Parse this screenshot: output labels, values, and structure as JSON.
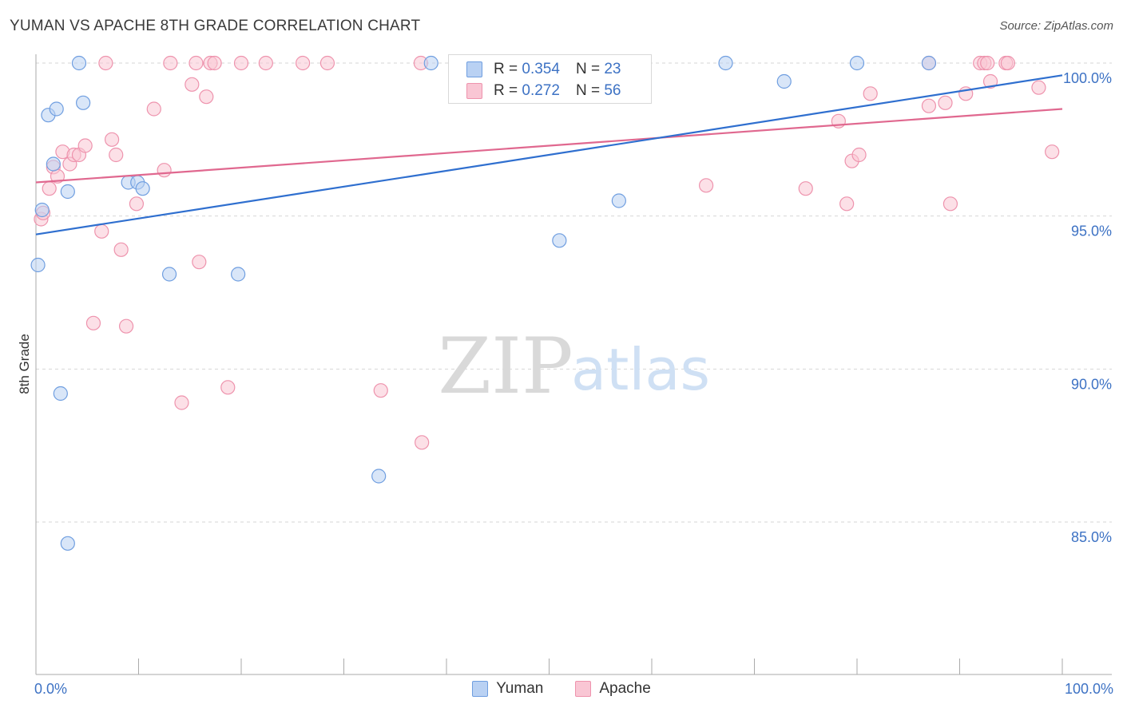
{
  "title": "YUMAN VS APACHE 8TH GRADE CORRELATION CHART",
  "source": "Source: ZipAtlas.com",
  "watermark": {
    "zip": "ZIP",
    "atlas": "atlas"
  },
  "legend": {
    "rows": [
      {
        "r_label": "R =",
        "r_value": "0.354",
        "n_label": "N =",
        "n_value": "23"
      },
      {
        "r_label": "R =",
        "r_value": "0.272",
        "n_label": "N =",
        "n_value": "56"
      }
    ]
  },
  "colors": {
    "yuman_fill": "#b9d1f3",
    "yuman_stroke": "#6f9ee0",
    "yuman_line": "#2f6fcf",
    "apache_fill": "#f9c6d4",
    "apache_stroke": "#ee93ad",
    "apache_line": "#e0688f",
    "tick_label": "#3d72c4",
    "grid": "#d6d6d6"
  },
  "chart_data": {
    "type": "scatter",
    "title": "YUMAN VS APACHE 8TH GRADE CORRELATION CHART",
    "xlabel": "",
    "ylabel": "8th Grade",
    "xlim": [
      0,
      100
    ],
    "ylim": [
      80.5,
      100.5
    ],
    "x_tick_labels": [
      "0.0%",
      "100.0%"
    ],
    "y_ticks": [
      100,
      95,
      90,
      85
    ],
    "y_tick_labels": [
      "100.0%",
      "95.0%",
      "90.0%",
      "85.0%"
    ],
    "series": [
      {
        "name": "Yuman",
        "R": 0.354,
        "N": 23,
        "trend": [
          [
            0,
            94.4
          ],
          [
            100,
            99.6
          ]
        ],
        "points": [
          [
            0.2,
            93.4
          ],
          [
            0.6,
            95.2
          ],
          [
            1.2,
            98.3
          ],
          [
            1.7,
            96.7
          ],
          [
            2.0,
            98.5
          ],
          [
            2.4,
            89.2
          ],
          [
            3.1,
            95.8
          ],
          [
            3.1,
            84.3
          ],
          [
            4.2,
            100.0
          ],
          [
            4.6,
            98.7
          ],
          [
            9.0,
            96.1
          ],
          [
            9.9,
            96.1
          ],
          [
            10.4,
            95.9
          ],
          [
            13.0,
            93.1
          ],
          [
            19.7,
            93.1
          ],
          [
            33.4,
            86.5
          ],
          [
            38.5,
            100.0
          ],
          [
            51.0,
            94.2
          ],
          [
            56.8,
            95.5
          ],
          [
            67.2,
            100.0
          ],
          [
            72.9,
            99.4
          ],
          [
            80.0,
            100.0
          ],
          [
            87.0,
            100.0
          ]
        ]
      },
      {
        "name": "Apache",
        "R": 0.272,
        "N": 56,
        "trend": [
          [
            0,
            96.1
          ],
          [
            100,
            98.5
          ]
        ],
        "points": [
          [
            0.5,
            94.9
          ],
          [
            0.7,
            95.1
          ],
          [
            1.3,
            95.9
          ],
          [
            1.7,
            96.6
          ],
          [
            2.1,
            96.3
          ],
          [
            2.6,
            97.1
          ],
          [
            3.3,
            96.7
          ],
          [
            3.7,
            97.0
          ],
          [
            4.2,
            97.0
          ],
          [
            4.8,
            97.3
          ],
          [
            5.6,
            91.5
          ],
          [
            6.4,
            94.5
          ],
          [
            6.8,
            100.0
          ],
          [
            7.4,
            97.5
          ],
          [
            7.8,
            97.0
          ],
          [
            8.3,
            93.9
          ],
          [
            8.8,
            91.4
          ],
          [
            9.8,
            95.4
          ],
          [
            11.5,
            98.5
          ],
          [
            12.5,
            96.5
          ],
          [
            13.1,
            100.0
          ],
          [
            14.2,
            88.9
          ],
          [
            15.2,
            99.3
          ],
          [
            15.6,
            100.0
          ],
          [
            15.9,
            93.5
          ],
          [
            16.6,
            98.9
          ],
          [
            17.0,
            100.0
          ],
          [
            17.4,
            100.0
          ],
          [
            18.7,
            89.4
          ],
          [
            20.0,
            100.0
          ],
          [
            22.4,
            100.0
          ],
          [
            26.0,
            100.0
          ],
          [
            28.4,
            100.0
          ],
          [
            33.6,
            89.3
          ],
          [
            37.5,
            100.0
          ],
          [
            37.6,
            87.6
          ],
          [
            65.3,
            96.0
          ],
          [
            75.0,
            95.9
          ],
          [
            78.2,
            98.1
          ],
          [
            79.0,
            95.4
          ],
          [
            79.5,
            96.8
          ],
          [
            80.2,
            97.0
          ],
          [
            81.3,
            99.0
          ],
          [
            87.0,
            100.0
          ],
          [
            87.0,
            98.6
          ],
          [
            88.6,
            98.7
          ],
          [
            89.1,
            95.4
          ],
          [
            90.6,
            99.0
          ],
          [
            92.0,
            100.0
          ],
          [
            92.4,
            100.0
          ],
          [
            92.7,
            100.0
          ],
          [
            93.0,
            99.4
          ],
          [
            94.5,
            100.0
          ],
          [
            94.7,
            100.0
          ],
          [
            97.7,
            99.2
          ],
          [
            99.0,
            97.1
          ]
        ]
      }
    ]
  }
}
